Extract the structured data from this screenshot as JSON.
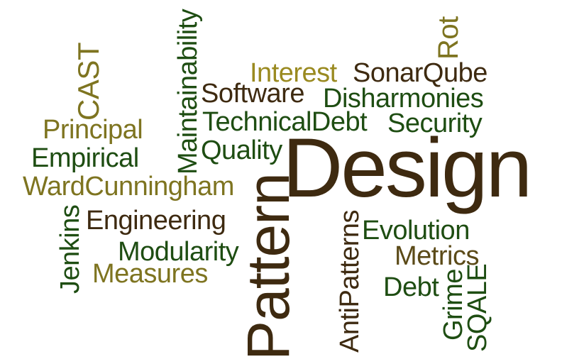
{
  "words": {
    "design": "Design",
    "pattern": "Pattern",
    "maintainability": "Maintainability",
    "cast": "CAST",
    "rot": "Rot",
    "interest": "Interest",
    "sonarqube": "SonarQube",
    "software": "Software",
    "disharmonies": "Disharmonies",
    "principal": "Principal",
    "technicaldebt": "TechnicalDebt",
    "security": "Security",
    "empirical": "Empirical",
    "quality": "Quality",
    "wardcunningham": "WardCunningham",
    "engineering": "Engineering",
    "jenkins": "Jenkins",
    "evolution": "Evolution",
    "antipatterns": "AntiPatterns",
    "modularity": "Modularity",
    "metrics": "Metrics",
    "measures": "Measures",
    "debt": "Debt",
    "grime": "Grime",
    "sqale": "SQALE"
  },
  "colors": {
    "dark_green": "#1e4d12",
    "dark_brown": "#3e2a10",
    "olive": "#7e7420",
    "gold": "#9a8a20",
    "mid_brown": "#5b4a18"
  }
}
